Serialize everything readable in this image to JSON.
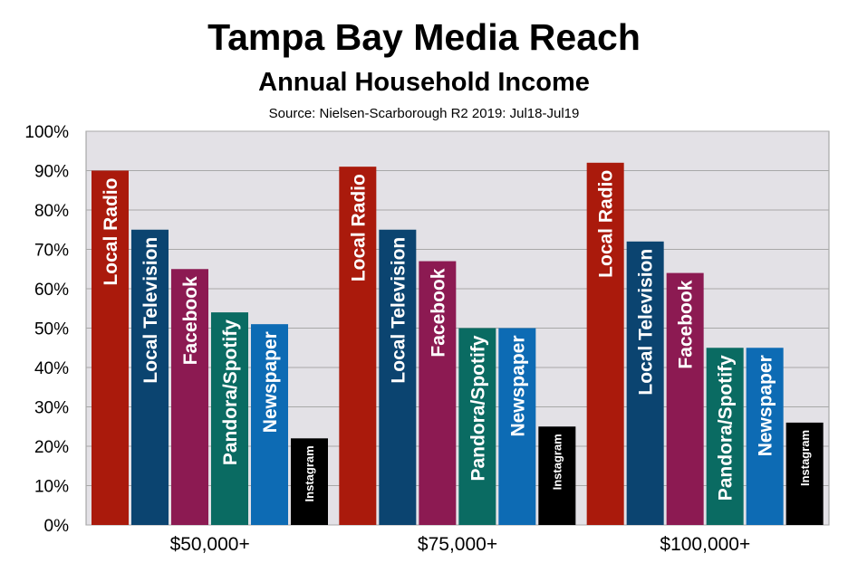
{
  "chart_data": {
    "type": "bar",
    "title": "Tampa Bay Media Reach",
    "subtitle": "Annual Household Income",
    "source": "Source: Nielsen-Scarborough R2 2019: Jul18-Jul19",
    "categories": [
      "$50,000+",
      "$75,000+",
      "$100,000+"
    ],
    "series": [
      {
        "name": "Local Radio",
        "values": [
          90,
          91,
          92
        ],
        "color": "#aa1a0c"
      },
      {
        "name": "Local Television",
        "values": [
          75,
          75,
          72
        ],
        "color": "#0b4470"
      },
      {
        "name": "Facebook",
        "values": [
          65,
          67,
          64
        ],
        "color": "#8c1a52"
      },
      {
        "name": "Pandora/Spotify",
        "values": [
          54,
          50,
          45
        ],
        "color": "#0a6b62"
      },
      {
        "name": "Newspaper",
        "values": [
          51,
          50,
          45
        ],
        "color": "#0d6bb4"
      },
      {
        "name": "Instagram",
        "values": [
          22,
          25,
          26
        ],
        "color": "#000000"
      }
    ],
    "ylim": [
      0,
      100
    ],
    "yticks": [
      "0%",
      "10%",
      "20%",
      "30%",
      "40%",
      "50%",
      "60%",
      "70%",
      "80%",
      "90%",
      "100%"
    ],
    "grid": true,
    "plot_background": "#e3e1e6",
    "labels_inside_bars": true
  }
}
